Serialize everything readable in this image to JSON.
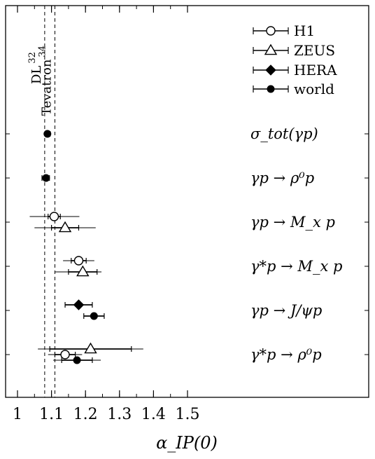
{
  "chart_data": {
    "type": "scatter",
    "xlabel": "α_IP(0)",
    "xlim": [
      0.99,
      1.52
    ],
    "x_ticks": [
      "1",
      "1.1",
      "1.2",
      "1.3",
      "1.4",
      "1.5"
    ],
    "x_tick_values": [
      1.0,
      1.1,
      1.2,
      1.3,
      1.4,
      1.5
    ],
    "reference_lines": [
      {
        "label": "DL",
        "ref": "32",
        "x": 1.08
      },
      {
        "label": "Tevatron",
        "ref": "34",
        "x": 1.11
      }
    ],
    "legend": [
      {
        "label": "H1",
        "marker": "open-circle"
      },
      {
        "label": "ZEUS",
        "marker": "open-triangle"
      },
      {
        "label": "HERA",
        "marker": "filled-diamond"
      },
      {
        "label": "world",
        "marker": "filled-circle"
      }
    ],
    "processes": [
      {
        "label": "σ_tot(γp)"
      },
      {
        "label": "γp → ρ⁰p"
      },
      {
        "label": "γp → M_x p"
      },
      {
        "label": "γ*p → M_x p"
      },
      {
        "label": "γp → J/ψp"
      },
      {
        "label": "γ*p → ρ⁰p"
      }
    ],
    "series": [
      {
        "name": "world",
        "process": 0,
        "x": 1.088,
        "err_lo": 0.005,
        "err_hi": 0.008,
        "err_sys_lo": 0.005,
        "err_sys_hi": 0.008
      },
      {
        "name": "world",
        "process": 1,
        "x": 1.084,
        "err_lo": 0.012,
        "err_hi": 0.01,
        "err_sys_lo": 0.012,
        "err_sys_hi": 0.01
      },
      {
        "name": "H1",
        "process": 2,
        "x": 1.108,
        "err_lo": 0.018,
        "err_hi": 0.018,
        "err_sys_lo": 0.072,
        "err_sys_hi": 0.074,
        "offset": -1
      },
      {
        "name": "ZEUS",
        "process": 2,
        "x": 1.14,
        "err_lo": 0.04,
        "err_hi": 0.04,
        "err_sys_lo": 0.09,
        "err_sys_hi": 0.09,
        "offset": 1
      },
      {
        "name": "H1",
        "process": 3,
        "x": 1.18,
        "err_lo": 0.022,
        "err_hi": 0.022,
        "err_sys_lo": 0.046,
        "err_sys_hi": 0.046,
        "offset": -1
      },
      {
        "name": "ZEUS",
        "process": 3,
        "x": 1.192,
        "err_lo": 0.042,
        "err_hi": 0.042,
        "err_sys_lo": 0.082,
        "err_sys_hi": 0.055,
        "offset": 1
      },
      {
        "name": "HERA",
        "process": 4,
        "x": 1.18,
        "err_lo": 0.04,
        "err_hi": 0.04,
        "err_sys_lo": 0.04,
        "err_sys_hi": 0.04,
        "offset": -1
      },
      {
        "name": "world",
        "process": 4,
        "x": 1.225,
        "err_lo": 0.03,
        "err_hi": 0.03,
        "err_sys_lo": 0.03,
        "err_sys_hi": 0.03,
        "offset": 1
      },
      {
        "name": "ZEUS",
        "process": 5,
        "x": 1.215,
        "err_lo": 0.12,
        "err_hi": 0.12,
        "err_sys_lo": 0.155,
        "err_sys_hi": 0.155,
        "offset": -1
      },
      {
        "name": "H1",
        "process": 5,
        "x": 1.14,
        "err_lo": 0.03,
        "err_hi": 0.03,
        "err_sys_lo": 0.05,
        "err_sys_hi": 0.05,
        "offset": 0
      },
      {
        "name": "world",
        "process": 5,
        "x": 1.175,
        "err_lo": 0.045,
        "err_hi": 0.045,
        "err_sys_lo": 0.07,
        "err_sys_hi": 0.07,
        "offset": 1
      }
    ]
  }
}
